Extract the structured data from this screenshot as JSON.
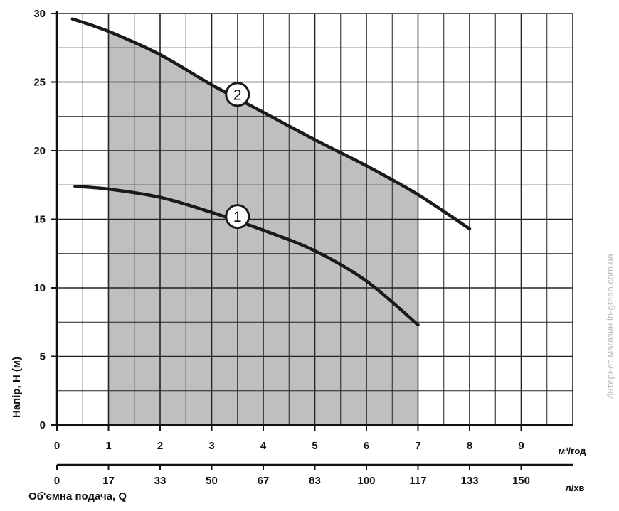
{
  "chart_data": {
    "type": "line",
    "y_axis": {
      "label": "Напір, Н (м)",
      "range": [
        0,
        30
      ],
      "ticks": [
        "0",
        "5",
        "10",
        "15",
        "20",
        "25",
        "30"
      ]
    },
    "x_axis_primary": {
      "unit": "м³/год",
      "range": [
        0,
        10
      ],
      "ticks": [
        "0",
        "1",
        "2",
        "3",
        "4",
        "5",
        "6",
        "7",
        "8",
        "9"
      ]
    },
    "x_axis_secondary": {
      "label": "Об'ємна подача, Q",
      "unit": "л/хв",
      "ticks": [
        "0",
        "17",
        "33",
        "50",
        "67",
        "83",
        "100",
        "117",
        "133",
        "150"
      ]
    },
    "grid": true,
    "shaded_range": {
      "x_from": 1,
      "x_to": 7
    },
    "series": [
      {
        "name": "1",
        "x": [
          0.35,
          1.0,
          2.0,
          3.0,
          4.0,
          5.0,
          6.0,
          7.0
        ],
        "y": [
          17.4,
          17.2,
          16.6,
          15.5,
          14.2,
          12.7,
          10.5,
          7.3
        ]
      },
      {
        "name": "2",
        "x": [
          0.3,
          1.0,
          2.0,
          3.0,
          4.0,
          5.0,
          6.0,
          7.0,
          8.0
        ],
        "y": [
          29.6,
          28.7,
          27.0,
          24.8,
          22.8,
          20.8,
          18.9,
          16.8,
          14.3
        ]
      }
    ],
    "marker_positions": [
      {
        "label": "1",
        "x": 3.5,
        "y": 15.2
      },
      {
        "label": "2",
        "x": 3.5,
        "y": 24.1
      }
    ]
  },
  "watermark": "Интернет магазин in-green.com.ua",
  "colors": {
    "grid": "#222222",
    "shade": "#bfbfbf",
    "curve": "#1a1a1a",
    "background": "#ffffff"
  }
}
